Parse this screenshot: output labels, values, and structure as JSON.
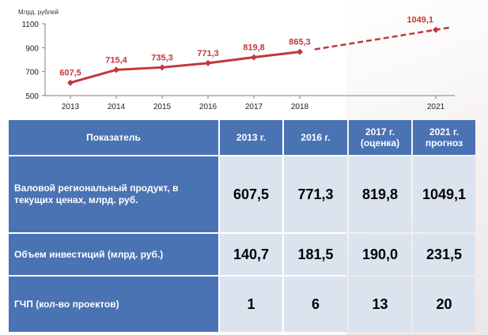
{
  "chart_data": {
    "type": "line",
    "ylabel": "Млрд. рублей",
    "ylim": [
      500,
      1100
    ],
    "yticks": [
      "500",
      "700",
      "900",
      "1100"
    ],
    "categories": [
      "2013",
      "2014",
      "2015",
      "2016",
      "2017",
      "2018",
      "2021"
    ],
    "series": [
      {
        "x": [
          "2013",
          "2014",
          "2015",
          "2016",
          "2017",
          "2018"
        ],
        "values": [
          607.5,
          715.4,
          735.3,
          771.3,
          819.8,
          865.3
        ],
        "labels": [
          "607,5",
          "715,4",
          "735,3",
          "771,3",
          "819,8",
          "865,3"
        ],
        "style": "solid"
      },
      {
        "x": [
          "2018",
          "2021"
        ],
        "values": [
          865.3,
          1049.1
        ],
        "labels": [
          "",
          "1049,1"
        ],
        "style": "dashed"
      }
    ],
    "colors": {
      "line": "#c0393b",
      "label": "#c0393b",
      "axis": "#808080"
    }
  },
  "table": {
    "headers": [
      "Показатель",
      "2013 г.",
      "2016 г.",
      "2017 г. (оценка)",
      "2021 г. прогноз"
    ],
    "rows": [
      {
        "label": "Валовой региональный продукт, в текущих ценах, млрд. руб.",
        "values": [
          "607,5",
          "771,3",
          "819,8",
          "1049,1"
        ]
      },
      {
        "label": "Объем инвестиций (млрд. руб.)",
        "values": [
          "140,7",
          "181,5",
          "190,0",
          "231,5"
        ]
      },
      {
        "label": "ГЧП (кол-во проектов)",
        "values": [
          "1",
          "6",
          "13",
          "20"
        ]
      }
    ],
    "colors": {
      "header_bg": "#4a73b4",
      "cell_bg": "#dbe3ef"
    }
  }
}
